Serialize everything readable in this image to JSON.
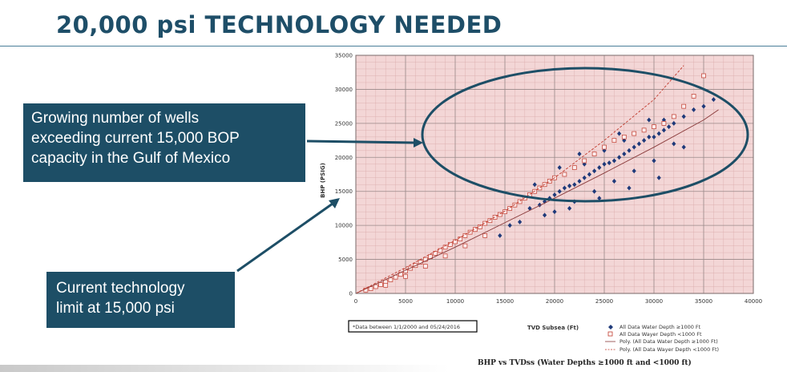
{
  "slide": {
    "title": "20,000 psi TECHNOLOGY NEEDED",
    "callout_top": {
      "lines": [
        "Growing number of wells",
        "exceeding current 15,000 BOP",
        "capacity in the Gulf of Mexico"
      ]
    },
    "callout_bottom": {
      "lines": [
        "Current technology",
        "limit at 15,000 psi"
      ]
    },
    "colors": {
      "title": "#1e4e68",
      "callout_bg": "#1d4e66",
      "plot_bg": "#f3d6d6",
      "deep_marker": "#1f3a7a",
      "shallow_marker": "#c0392b"
    }
  },
  "chart_data": {
    "type": "scatter",
    "title": "BHP vs TVDss (Water Depths ≥1000 ft and <1000 ft)",
    "xlabel": "TVD Subsea (Ft)",
    "ylabel": "BHP (PSIG)",
    "xlim": [
      0,
      40000
    ],
    "ylim": [
      0,
      35000
    ],
    "x_ticks": [
      0,
      5000,
      10000,
      15000,
      20000,
      25000,
      30000,
      35000,
      40000
    ],
    "y_ticks": [
      0,
      5000,
      10000,
      15000,
      20000,
      25000,
      30000,
      35000
    ],
    "note": "*Data between 1/1/2000 and 05/24/2016",
    "series": [
      {
        "name": "All Data Water Depth ≥1000 Ft",
        "marker": "diamond-filled",
        "color": "#1f3a7a",
        "x": [
          14500,
          15500,
          16500,
          17500,
          18500,
          19000,
          19500,
          20000,
          20500,
          21000,
          21500,
          22000,
          22500,
          23000,
          23500,
          24000,
          24500,
          25000,
          25500,
          26000,
          26500,
          27000,
          27500,
          28000,
          28500,
          29000,
          29500,
          30000,
          30500,
          31000,
          31500,
          32000,
          33000,
          34000,
          35000,
          36000,
          20000,
          22000,
          24000,
          26000,
          28000,
          30000,
          21000,
          23000,
          25000,
          27000,
          29000,
          31000,
          19000,
          21500,
          24500,
          27500,
          30500,
          33000,
          18000,
          22500,
          26500,
          29500,
          32000,
          20500
        ],
        "y": [
          8500,
          10000,
          10500,
          12500,
          13000,
          13500,
          14000,
          14500,
          15000,
          15500,
          15800,
          16000,
          16500,
          17000,
          17500,
          18000,
          18500,
          19000,
          19200,
          19500,
          20000,
          20500,
          21000,
          21500,
          22000,
          22500,
          23000,
          23000,
          23500,
          24000,
          24500,
          25000,
          26000,
          27000,
          27500,
          28500,
          12000,
          13500,
          15000,
          16500,
          18000,
          19500,
          17500,
          19000,
          21000,
          22500,
          24000,
          25500,
          11500,
          12500,
          14000,
          15500,
          17000,
          21500,
          16000,
          20500,
          23500,
          25500,
          22000,
          18500
        ]
      },
      {
        "name": "All Data Wayer Depth <1000 Ft",
        "marker": "square-open",
        "color": "#c0392b",
        "x": [
          1000,
          1500,
          2000,
          2500,
          3000,
          3500,
          4000,
          4500,
          5000,
          5500,
          6000,
          6500,
          7000,
          7500,
          8000,
          8500,
          9000,
          9500,
          10000,
          10500,
          11000,
          11500,
          12000,
          12500,
          13000,
          13500,
          14000,
          14500,
          15000,
          15500,
          16000,
          16500,
          17000,
          17500,
          18000,
          18500,
          19000,
          19500,
          20000,
          21000,
          22000,
          23000,
          24000,
          25000,
          26000,
          27000,
          28000,
          29000,
          30000,
          31000,
          32000,
          33000,
          34000,
          35000,
          3000,
          5000,
          7000,
          9000,
          11000,
          13000
        ],
        "y": [
          500,
          700,
          1000,
          1300,
          1700,
          2000,
          2400,
          2800,
          3300,
          3700,
          4100,
          4600,
          5000,
          5400,
          5900,
          6300,
          6800,
          7200,
          7600,
          8000,
          8500,
          9000,
          9400,
          9800,
          10300,
          10700,
          11200,
          11600,
          12000,
          12500,
          13000,
          13500,
          14000,
          14500,
          15000,
          15500,
          16000,
          16500,
          17000,
          17500,
          18500,
          19500,
          20500,
          21500,
          22500,
          23000,
          23500,
          24000,
          24500,
          25000,
          26000,
          27500,
          29000,
          32000,
          1200,
          2500,
          4000,
          5500,
          7000,
          8500
        ]
      },
      {
        "name": "Poly. (All Data Water Depth ≥1000 Ft)",
        "type": "line",
        "style": "solid",
        "color": "#8a3a3a",
        "x": [
          0,
          5000,
          10000,
          15000,
          20000,
          25000,
          30000,
          35000,
          36500
        ],
        "y": [
          0,
          3400,
          6800,
          10400,
          14000,
          17700,
          21500,
          25500,
          27000
        ]
      },
      {
        "name": "Poly. (All Data Wayer Depth <1000 Ft)",
        "type": "line",
        "style": "dashed",
        "color": "#c0392b",
        "x": [
          0,
          5000,
          10000,
          15000,
          20000,
          25000,
          30000,
          33000
        ],
        "y": [
          0,
          3800,
          7800,
          12100,
          17000,
          22500,
          28500,
          33500
        ]
      }
    ]
  }
}
